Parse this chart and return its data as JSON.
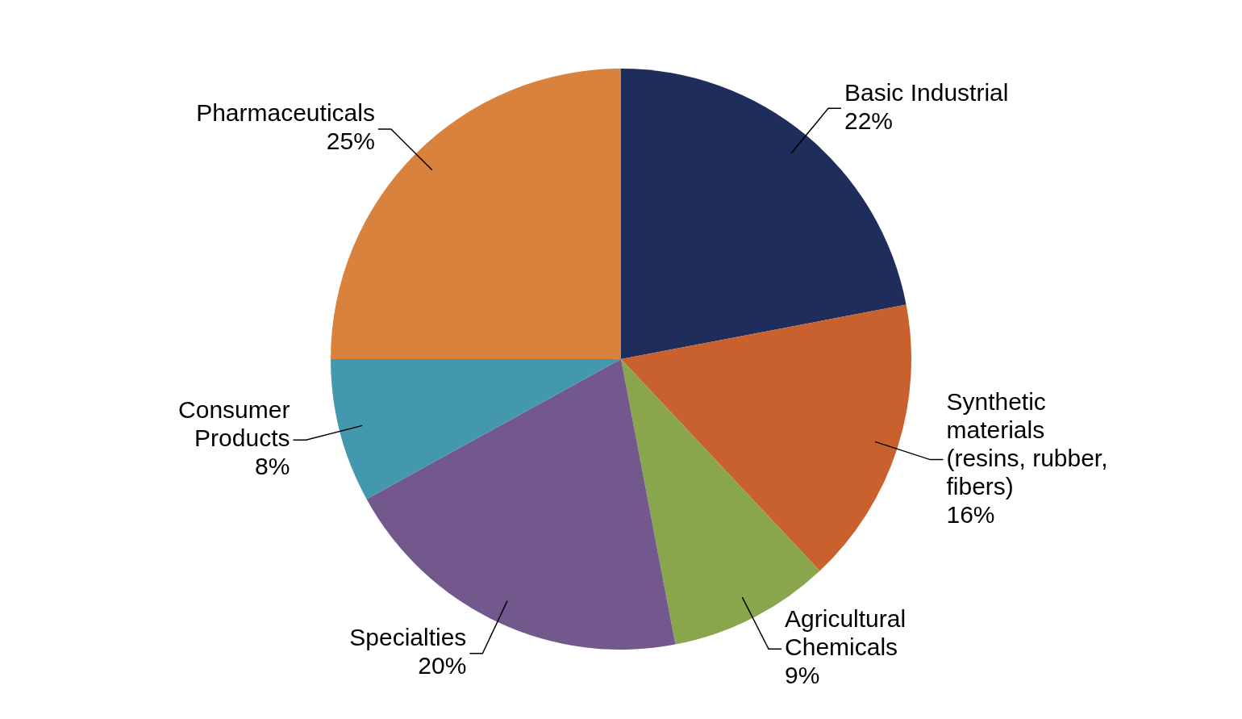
{
  "chart_data": {
    "type": "pie",
    "categories": [
      "Basic Industrial",
      "Synthetic materials (resins, rubber, fibers)",
      "Agricultural Chemicals",
      "Specialties",
      "Consumer Products",
      "Pharmaceuticals"
    ],
    "values": [
      22,
      16,
      9,
      20,
      8,
      25
    ],
    "colors": [
      "#1f2d5c",
      "#c8612e",
      "#8aa64c",
      "#72588c",
      "#4398ae",
      "#d9823e"
    ],
    "value_labels": [
      "22%",
      "16%",
      "9%",
      "20%",
      "8%",
      "25%"
    ]
  }
}
